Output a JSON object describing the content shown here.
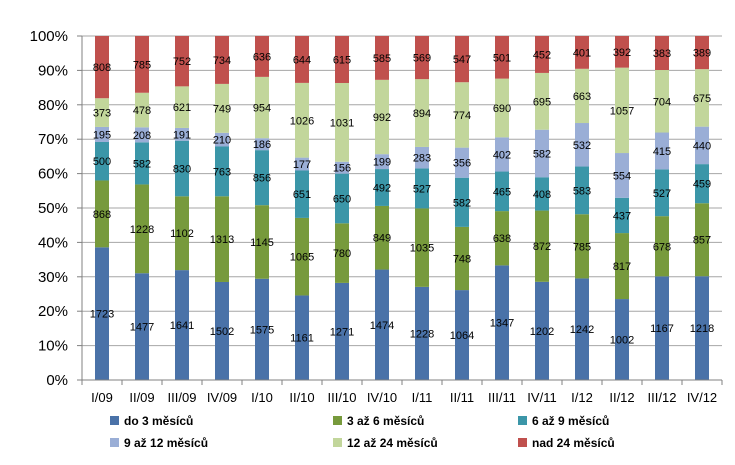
{
  "chart_data": {
    "type": "bar",
    "stacked": true,
    "normalized": true,
    "title": "",
    "xlabel": "",
    "ylabel": "",
    "ylim": [
      0,
      100
    ],
    "ytick_step": 10,
    "grid": true,
    "legend_position": "bottom",
    "categories": [
      "I/09",
      "II/09",
      "III/09",
      "IV/09",
      "I/10",
      "II/10",
      "III/10",
      "IV/10",
      "I/11",
      "II/11",
      "III/11",
      "IV/11",
      "I/12",
      "II/12",
      "III/12",
      "IV/12"
    ],
    "series": [
      {
        "name": "do 3 měsíců",
        "color": "#4a72a8",
        "values": [
          1723,
          1477,
          1641,
          1502,
          1575,
          1161,
          1271,
          1474,
          1228,
          1064,
          1347,
          1202,
          1242,
          1002,
          1167,
          1218
        ]
      },
      {
        "name": "3 až 6 měsíců",
        "color": "#779a3c",
        "values": [
          868,
          1228,
          1102,
          1313,
          1145,
          1065,
          780,
          849,
          1035,
          748,
          638,
          872,
          785,
          817,
          678,
          857
        ]
      },
      {
        "name": "6 až 9 měsíců",
        "color": "#3b96a8",
        "values": [
          500,
          582,
          830,
          763,
          856,
          651,
          650,
          492,
          527,
          582,
          465,
          408,
          583,
          437,
          527,
          459
        ]
      },
      {
        "name": "9 až 12 měsíců",
        "color": "#9aaed6",
        "values": [
          195,
          208,
          191,
          210,
          186,
          177,
          156,
          199,
          283,
          356,
          402,
          582,
          532,
          554,
          415,
          440
        ]
      },
      {
        "name": "12 až 24 měsíců",
        "color": "#c2d69b",
        "values": [
          373,
          478,
          621,
          749,
          954,
          1026,
          1031,
          992,
          894,
          774,
          690,
          695,
          663,
          1057,
          704,
          675
        ]
      },
      {
        "name": "nad 24 měsíců",
        "color": "#c0504d",
        "values": [
          808,
          785,
          752,
          734,
          636,
          644,
          615,
          585,
          569,
          547,
          501,
          452,
          401,
          392,
          383,
          389
        ]
      }
    ]
  }
}
